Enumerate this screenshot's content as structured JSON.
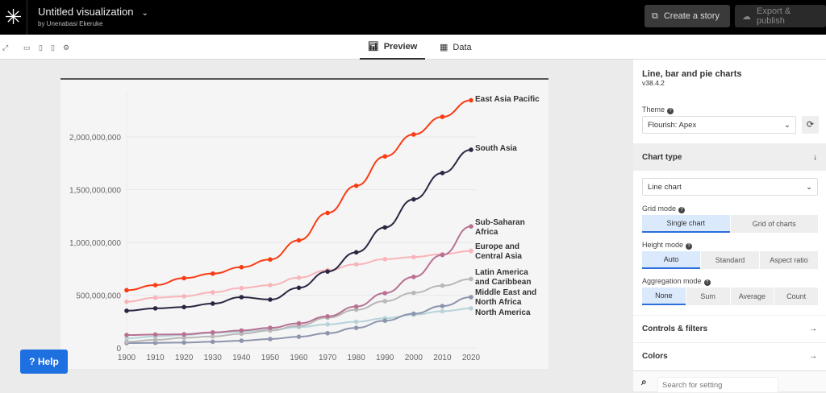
{
  "header": {
    "title": "Untitled visualization",
    "byline": "by Unenabasi Ekeruke",
    "create_story": "Create a story",
    "export": "Export & publish"
  },
  "toolbar": {
    "tabs": [
      {
        "label": "Preview",
        "active": true
      },
      {
        "label": "Data",
        "active": false
      }
    ]
  },
  "help": {
    "label": "? Help"
  },
  "panel": {
    "template": "Line, bar and pie charts",
    "version": "v38.4.2",
    "theme_label": "Theme",
    "theme_value": "Flourish: Apex",
    "chart_type_header": "Chart type",
    "chart_type_value": "Line chart",
    "grid_mode": {
      "label": "Grid mode",
      "options": [
        "Single chart",
        "Grid of charts"
      ],
      "selected": "Single chart"
    },
    "height_mode": {
      "label": "Height mode",
      "options": [
        "Auto",
        "Standard",
        "Aspect ratio"
      ],
      "selected": "Auto"
    },
    "aggregation_mode": {
      "label": "Aggregation mode",
      "options": [
        "None",
        "Sum",
        "Average",
        "Count"
      ],
      "selected": "None"
    },
    "controls": "Controls & filters",
    "colors": "Colors",
    "search_placeholder": "Search for setting"
  },
  "chart_data": {
    "type": "line",
    "x": [
      1900,
      1910,
      1920,
      1930,
      1940,
      1950,
      1960,
      1970,
      1980,
      1990,
      2000,
      2010,
      2020
    ],
    "ylim": [
      0,
      2400000000
    ],
    "yticks": [
      0,
      500000000,
      1000000000,
      1500000000,
      2000000000
    ],
    "ytick_labels": [
      "0",
      "500,000,000",
      "1,000,000,000",
      "1,500,000,000",
      "2,000,000,000"
    ],
    "grid": true,
    "legend": "direct labels at line ends",
    "series": [
      {
        "name": "East Asia Pacific",
        "color": "#f83c14",
        "values": [
          547000000,
          595000000,
          661000000,
          704000000,
          765000000,
          838000000,
          1020000000,
          1279000000,
          1537000000,
          1815000000,
          2023000000,
          2190000000,
          2347000000
        ]
      },
      {
        "name": "South Asia",
        "color": "#2b2742",
        "values": [
          352000000,
          375000000,
          387000000,
          420000000,
          481000000,
          458000000,
          570000000,
          724000000,
          906000000,
          1142000000,
          1408000000,
          1658000000,
          1878000000
        ]
      },
      {
        "name": "Sub-Saharan Africa",
        "color": "#b87193",
        "values": [
          122000000,
          127000000,
          129000000,
          147000000,
          165000000,
          190000000,
          233000000,
          299000000,
          392000000,
          519000000,
          673000000,
          881000000,
          1152000000
        ]
      },
      {
        "name": "Europe and Central Asia",
        "color": "#f8b4ba",
        "values": [
          438000000,
          476000000,
          489000000,
          527000000,
          567000000,
          595000000,
          666000000,
          737000000,
          792000000,
          841000000,
          861000000,
          889000000,
          919000000
        ]
      },
      {
        "name": "Latin America and Caribbean",
        "color": "#b8b8b8",
        "values": [
          58000000,
          76000000,
          96000000,
          109000000,
          134000000,
          165000000,
          210000000,
          286000000,
          362000000,
          443000000,
          522000000,
          590000000,
          653000000
        ]
      },
      {
        "name": "Middle East and North Africa",
        "color": "#8d95ad",
        "values": [
          46000000,
          48000000,
          51000000,
          58000000,
          68000000,
          84000000,
          106000000,
          139000000,
          190000000,
          258000000,
          324000000,
          397000000,
          481000000
        ]
      },
      {
        "name": "North America",
        "color": "#b7d3da",
        "values": [
          91000000,
          109000000,
          122000000,
          142000000,
          154000000,
          172000000,
          197000000,
          223000000,
          248000000,
          281000000,
          314000000,
          347000000,
          375000000
        ]
      }
    ]
  }
}
